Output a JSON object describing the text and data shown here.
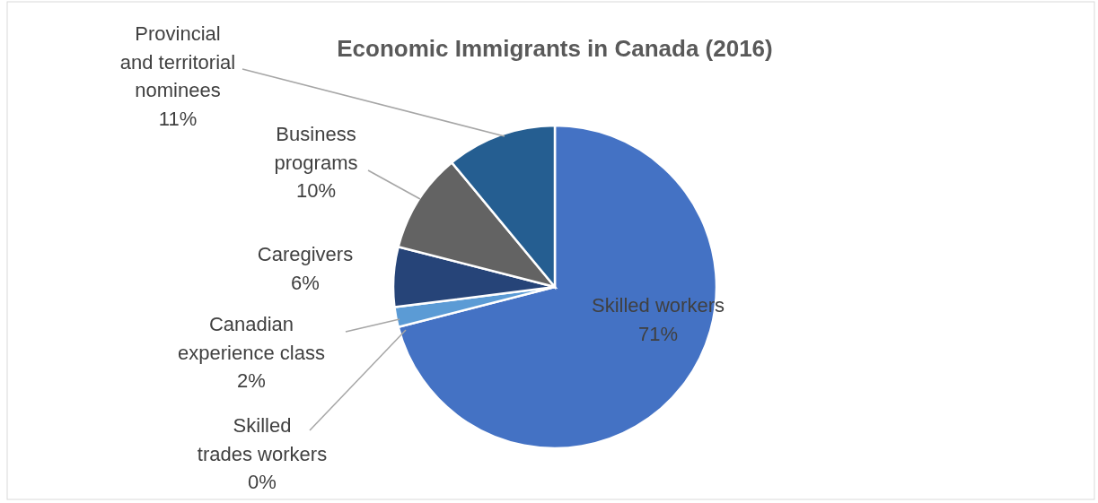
{
  "chart_data": {
    "type": "pie",
    "title": "Economic Immigrants in Canada (2016)",
    "categories": [
      "Skilled workers",
      "Skilled\ntrades workers",
      "Canadian\nexperience class",
      "Caregivers",
      "Business\nprograms",
      "Provincial\nand territorial\nnominees"
    ],
    "values": [
      71,
      0,
      2,
      6,
      10,
      11
    ],
    "value_labels": [
      "71%",
      "0%",
      "2%",
      "6%",
      "10%",
      "11%"
    ],
    "colors": [
      "#4472c4",
      "#a5a5a5",
      "#5b9bd5",
      "#264478",
      "#636363",
      "#255e91"
    ]
  }
}
